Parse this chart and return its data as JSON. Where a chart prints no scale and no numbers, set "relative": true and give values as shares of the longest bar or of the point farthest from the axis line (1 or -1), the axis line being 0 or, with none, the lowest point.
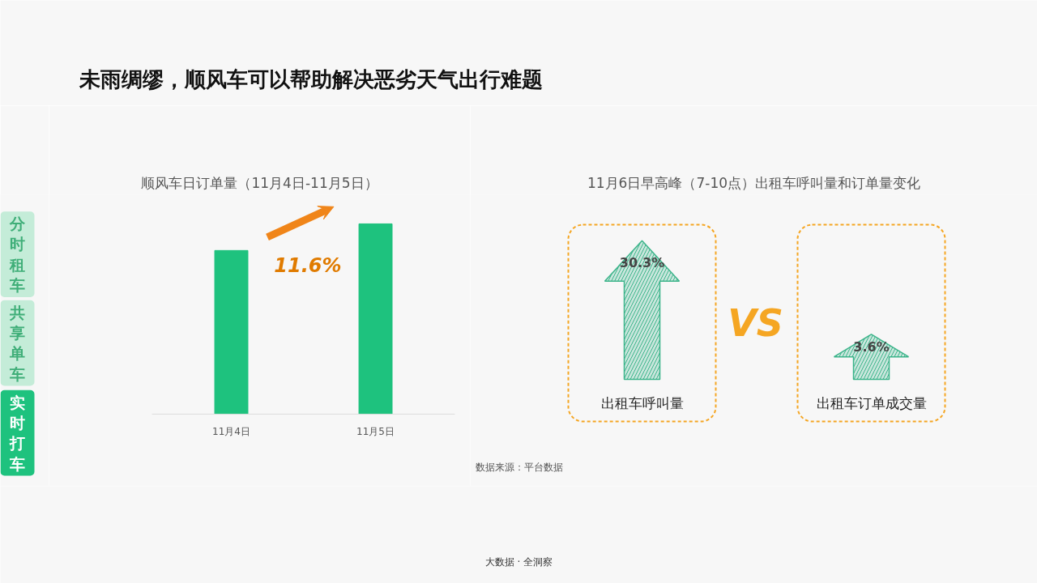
{
  "chart_data": [
    {
      "type": "bar",
      "title": "顺风车日订单量（11月4日-11月5日）",
      "categories": [
        "11月4日",
        "11月5日"
      ],
      "values": [
        0.86,
        1
      ],
      "color": "#1ec27e",
      "relative": true,
      "grid": false,
      "annotations": [
        "11.6%"
      ]
    },
    {
      "type": "other",
      "title": "11月6日早高峰（7-10点）出租车呼叫量和订单量变化",
      "categories": [
        "出租车呼叫量",
        "出租车订单成交量"
      ],
      "values": [
        30.3,
        3.6
      ],
      "value_labels": [
        "30.3%",
        "3.6%"
      ],
      "color": "#3cb48a",
      "annotations": [
        "VS",
        "未雨绸缪，顺风车可以帮助解决恶劣天气出行难题",
        "分时租车",
        "共享单车",
        "实时打车",
        "数据来源：平台数据",
        "大数据 · 全洞察"
      ]
    }
  ]
}
